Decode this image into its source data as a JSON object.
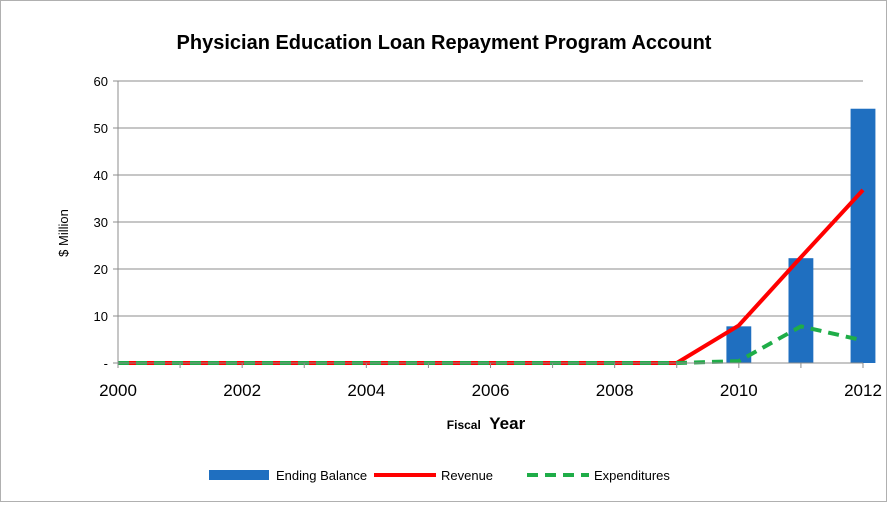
{
  "chart_data": {
    "type": "bar",
    "title": "Physician Education Loan Repayment Program Account",
    "ylabel": "$ Million",
    "xlabel_small": "Fiscal",
    "xlabel_large": "Year",
    "ylim": [
      0,
      60
    ],
    "yticks": [
      {
        "value": 0,
        "label": "-"
      },
      {
        "value": 10,
        "label": "10"
      },
      {
        "value": 20,
        "label": "20"
      },
      {
        "value": 30,
        "label": "30"
      },
      {
        "value": 40,
        "label": "40"
      },
      {
        "value": 50,
        "label": "50"
      },
      {
        "value": 60,
        "label": "60"
      }
    ],
    "categories": [
      "2000",
      "2001",
      "2002",
      "2003",
      "2004",
      "2005",
      "2006",
      "2007",
      "2008",
      "2009",
      "2010",
      "2011",
      "2012"
    ],
    "xtick_labels": [
      "2000",
      "2002",
      "2004",
      "2006",
      "2008",
      "2010",
      "2012"
    ],
    "grid": true,
    "legend_position": "bottom",
    "series": [
      {
        "name": "Ending Balance",
        "kind": "bar",
        "color": "#1f6fc0",
        "values": [
          0,
          0,
          0,
          0,
          0,
          0,
          0,
          0,
          0,
          0,
          7.8,
          22.3,
          54.1
        ]
      },
      {
        "name": "Revenue",
        "kind": "line",
        "color": "#ff0000",
        "values": [
          0,
          0,
          0,
          0,
          0,
          0,
          0,
          0,
          0,
          0,
          8.0,
          22.5,
          36.8
        ]
      },
      {
        "name": "Expenditures",
        "kind": "dashed-line",
        "color": "#1fad48",
        "values": [
          0,
          0,
          0,
          0,
          0,
          0,
          0,
          0,
          0,
          0,
          0.4,
          7.8,
          4.8
        ]
      }
    ]
  }
}
